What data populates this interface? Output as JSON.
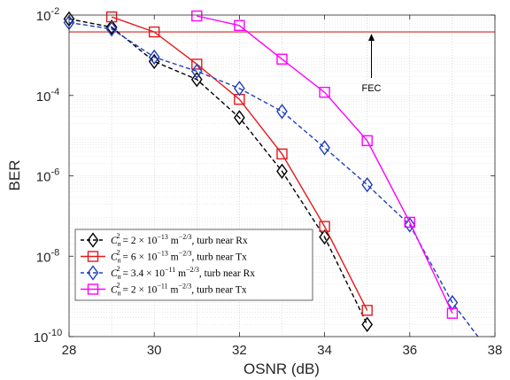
{
  "chart_data": {
    "type": "line",
    "xlabel": "OSNR (dB)",
    "ylabel": "BER",
    "xlim": [
      28,
      38
    ],
    "ylim": [
      1e-10,
      0.01
    ],
    "yscale": "log",
    "grid": true,
    "legend_position": "bottom-left",
    "x_ticks": [
      {
        "value": 28,
        "label": "28"
      },
      {
        "value": 30,
        "label": "30"
      },
      {
        "value": 32,
        "label": "32"
      },
      {
        "value": 34,
        "label": "34"
      },
      {
        "value": 36,
        "label": "36"
      },
      {
        "value": 38,
        "label": "38"
      }
    ],
    "y_ticks": [
      {
        "exp": -10,
        "base": "10",
        "power": "-10"
      },
      {
        "exp": -8,
        "base": "10",
        "power": "-8"
      },
      {
        "exp": -6,
        "base": "10",
        "power": "-6"
      },
      {
        "exp": -4,
        "base": "10",
        "power": "-4"
      },
      {
        "exp": -2,
        "base": "10",
        "power": "-2"
      }
    ],
    "fec": {
      "label": "FEC",
      "value": 0.0038,
      "color": "#d62728"
    },
    "series": [
      {
        "name": "2 × 10⁻¹³ m⁻²ᐟ³, turb near Rx",
        "legend_coef": "2 × 10",
        "legend_exp": "−13",
        "legend_tail": ", turb near Rx",
        "color": "#000000",
        "marker": "diamond",
        "line_style": "dashed",
        "x": [
          28,
          29,
          30,
          31,
          32,
          33,
          34,
          35
        ],
        "y": [
          0.008,
          0.005,
          0.0007,
          0.00025,
          2.8e-05,
          1.3e-06,
          3e-08,
          2e-10
        ]
      },
      {
        "name": "6 × 10⁻¹³ m⁻²ᐟ³, turb near Tx",
        "legend_coef": "6 × 10",
        "legend_exp": "−13",
        "legend_tail": ", turb near Tx",
        "color": "#e31a1c",
        "marker": "square",
        "line_style": "solid",
        "x": [
          29,
          30,
          31,
          32,
          33,
          34,
          35
        ],
        "y": [
          0.009,
          0.0038,
          0.0006,
          8e-05,
          3.5e-06,
          5.5e-08,
          4.5e-10
        ]
      },
      {
        "name": "3.4 × 10⁻¹¹ m⁻²ᐟ³, turb near Rx",
        "legend_coef": "3.4 × 10",
        "legend_exp": "−11",
        "legend_tail": ", turb near Rx",
        "color": "#1f3fbf",
        "marker": "diamond",
        "line_style": "dashed",
        "x": [
          28,
          29,
          30,
          31,
          32,
          33,
          34,
          35,
          36,
          37,
          37.6
        ],
        "y": [
          0.0065,
          0.0045,
          0.0009,
          0.0004,
          0.00015,
          4e-05,
          5e-06,
          6e-07,
          6e-08,
          7e-10,
          1e-10
        ]
      },
      {
        "name": "2 × 10⁻¹¹ m⁻²ᐟ³, turb near Tx",
        "legend_coef": "2 × 10",
        "legend_exp": "−11",
        "legend_tail": ", turb near Tx",
        "color": "#ff00ff",
        "marker": "square",
        "line_style": "solid",
        "x": [
          31,
          32,
          33,
          34,
          35,
          36,
          37
        ],
        "y": [
          0.0095,
          0.0055,
          0.0008,
          0.00012,
          7.5e-06,
          7e-08,
          3.8e-10
        ]
      }
    ]
  }
}
